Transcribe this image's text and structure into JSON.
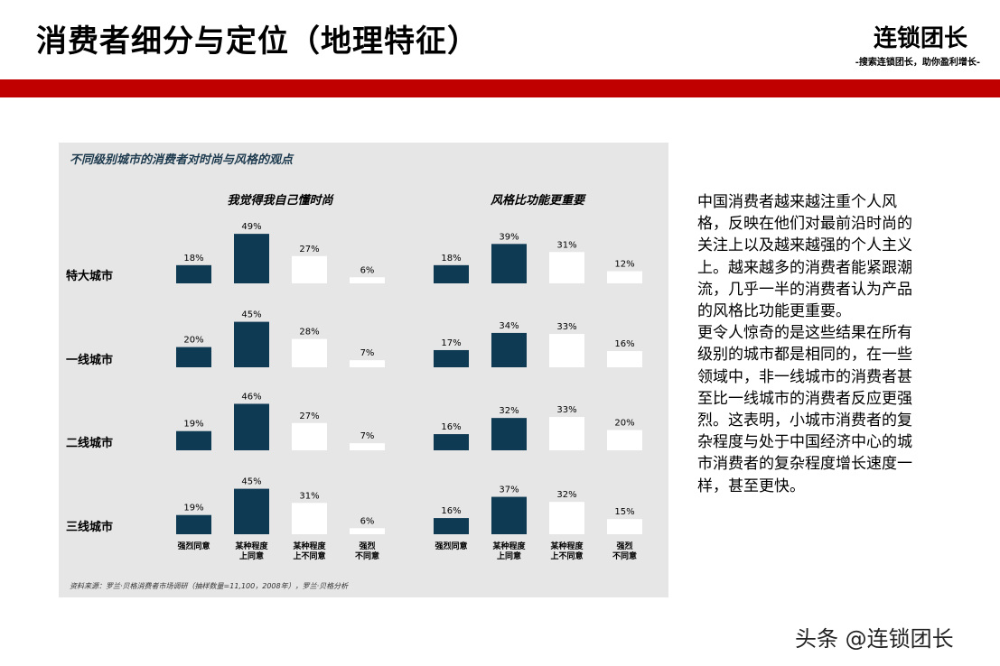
{
  "header": {
    "title": "消费者细分与定位（地理特征）",
    "brand": "连锁团长",
    "slogan": "-搜索连锁团长，助你盈利增长-"
  },
  "colors": {
    "accent_red": "#c00000",
    "bar_dark": "#0e3a53",
    "bar_light": "#ffffff",
    "panel_bg": "#e6e6e6"
  },
  "chart_data": {
    "type": "bar",
    "title": "不同级别城市的消费者对时尚与风格的观点",
    "rows": [
      "特大城市",
      "一线城市",
      "二线城市",
      "三线城市"
    ],
    "categories": [
      "强烈同意",
      "某种程度上同意",
      "某种程度上不同意",
      "强烈不同意"
    ],
    "category_labels": [
      [
        "强烈同意"
      ],
      [
        "某种程度",
        "上同意"
      ],
      [
        "某种程度",
        "上不同意"
      ],
      [
        "强烈",
        "不同意"
      ]
    ],
    "category_colors": [
      "#0e3a53",
      "#0e3a53",
      "#ffffff",
      "#ffffff"
    ],
    "panels": [
      {
        "name": "我觉得我自己懂时尚",
        "values": [
          [
            18,
            49,
            27,
            6
          ],
          [
            20,
            45,
            28,
            7
          ],
          [
            19,
            46,
            27,
            7
          ],
          [
            19,
            45,
            31,
            6
          ]
        ]
      },
      {
        "name": "风格比功能更重要",
        "values": [
          [
            18,
            39,
            31,
            12
          ],
          [
            17,
            34,
            33,
            16
          ],
          [
            16,
            32,
            33,
            20
          ],
          [
            16,
            37,
            32,
            15
          ]
        ]
      }
    ],
    "value_suffix": "%",
    "source": "资料来源：罗兰·贝格消费者市场调研（抽样数量=11,100，2008年），罗兰·贝格分析"
  },
  "body": {
    "paragraph1": "中国消费者越来越注重个人风格，反映在他们对最前沿时尚的关注上以及越来越强的个人主义上。越来越多的消费者能紧跟潮流，几乎一半的消费者认为产品的风格比功能更重要。",
    "paragraph2": "更令人惊奇的是这些结果在所有级别的城市都是相同的，在一些领域中，非一线城市的消费者甚至比一线城市的消费者反应更强烈。这表明，小城市消费者的复杂程度与处于中国经济中心的城市消费者的复杂程度增长速度一样，甚至更快。"
  },
  "watermark": "头条 @连锁团长"
}
